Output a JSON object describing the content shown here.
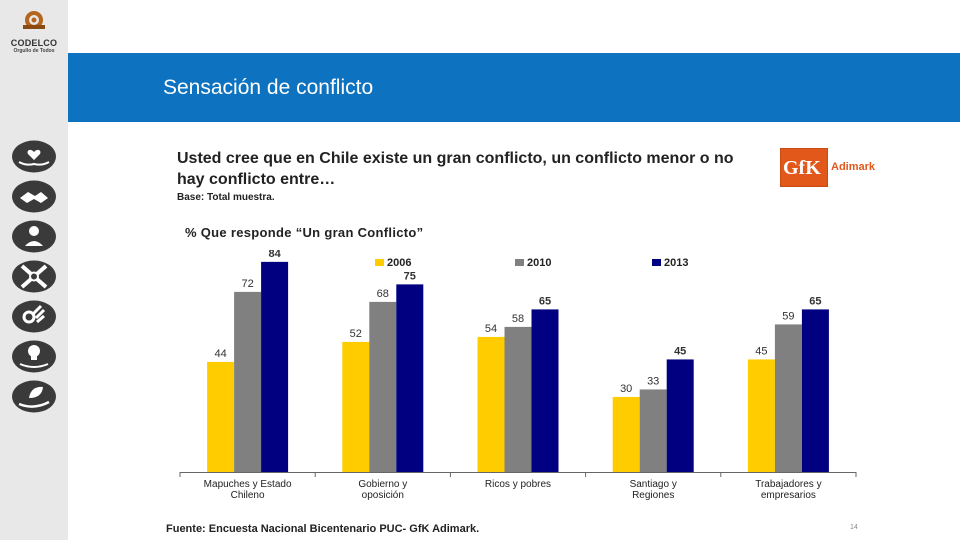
{
  "sidebar": {
    "logo": {
      "brand": "CODELCO",
      "tagline": "Orgullo de Todos"
    },
    "icons": [
      "heart-hands-icon",
      "handshake-icon",
      "person-award-icon",
      "arrows-cross-icon",
      "ok-hand-icon",
      "lightbulb-hand-icon",
      "leaf-hand-icon"
    ]
  },
  "header": {
    "title": "Sensación de conflicto"
  },
  "question": {
    "text": "Usted cree que en Chile existe un gran conflicto, un conflicto menor o no hay conflicto entre…",
    "base": "Base: Total muestra."
  },
  "subtitle": "% Que responde “Un gran Conflicto”",
  "brand_logo": {
    "name": "GfK",
    "suffix": "Adimark",
    "color": "#e2581b"
  },
  "chart_data": {
    "type": "bar",
    "categories": [
      "Mapuches y Estado Chileno",
      "Gobierno y oposición",
      "Ricos y pobres",
      "Santiago y Regiones",
      "Trabajadores y empresarios"
    ],
    "series": [
      {
        "name": "2006",
        "color": "#ffcc00",
        "values": [
          44,
          52,
          54,
          30,
          45
        ]
      },
      {
        "name": "2010",
        "color": "#808080",
        "values": [
          72,
          68,
          58,
          33,
          59
        ]
      },
      {
        "name": "2013",
        "color": "#000080",
        "values": [
          84,
          75,
          65,
          45,
          65
        ]
      }
    ],
    "legend_position": "top",
    "ylim": [
      0,
      100
    ],
    "grid": false,
    "highlight_series": "2013"
  },
  "footer": {
    "source": "Fuente: Encuesta Nacional Bicentenario PUC- GfK Adimark.",
    "page": "14"
  }
}
